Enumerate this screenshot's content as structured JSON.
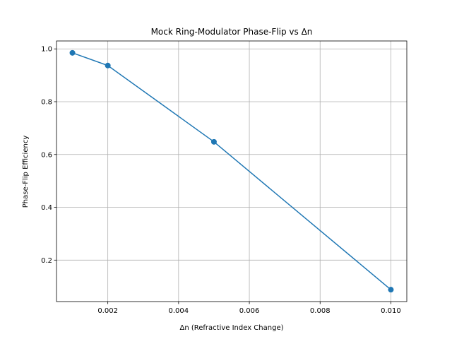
{
  "chart_data": {
    "type": "line",
    "title": "Mock Ring-Modulator Phase-Flip vs Δn",
    "xlabel": "Δn (Refractive Index Change)",
    "ylabel": "Phase-Flip Efficiency",
    "x": [
      0.001,
      0.002,
      0.005,
      0.01
    ],
    "series": [
      {
        "values": [
          0.985,
          0.937,
          0.648,
          0.088
        ]
      }
    ],
    "xlim": [
      0.00055,
      0.01045
    ],
    "ylim": [
      0.043,
      1.03
    ],
    "xticks": [
      0.002,
      0.004,
      0.006,
      0.008,
      0.01
    ],
    "xtick_labels": [
      "0.002",
      "0.004",
      "0.006",
      "0.008",
      "0.010"
    ],
    "yticks": [
      0.2,
      0.4,
      0.6,
      0.8,
      1.0
    ],
    "ytick_labels": [
      "0.2",
      "0.4",
      "0.6",
      "0.8",
      "1.0"
    ],
    "grid": true,
    "line_color": "#1f77b4",
    "marker": "circle"
  }
}
